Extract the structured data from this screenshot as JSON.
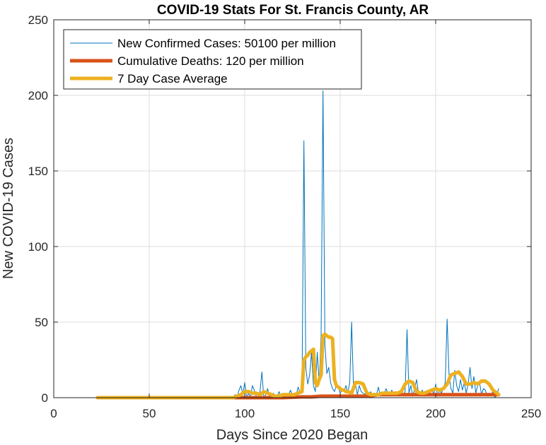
{
  "chart_data": {
    "type": "line",
    "title": "COVID-19 Stats For St. Francis County, AR",
    "xlabel": "Days Since 2020 Began",
    "ylabel": "New COVID-19 Cases",
    "xlim": [
      0,
      250
    ],
    "ylim": [
      0,
      250
    ],
    "xticks": [
      "0",
      "50",
      "100",
      "150",
      "200",
      "250"
    ],
    "yticks": [
      "0",
      "50",
      "100",
      "150",
      "200",
      "250"
    ],
    "grid": true,
    "legend_position": "top-left",
    "series": [
      {
        "name": "New Confirmed Cases: 50100 per million",
        "color": "#0072BD",
        "style": "thin",
        "x": [
          23,
          30,
          40,
          50,
          60,
          70,
          80,
          90,
          92,
          94,
          95,
          96,
          97,
          98,
          99,
          100,
          101,
          102,
          103,
          104,
          105,
          106,
          107,
          108,
          109,
          110,
          111,
          112,
          113,
          114,
          115,
          116,
          117,
          118,
          119,
          120,
          121,
          122,
          123,
          124,
          125,
          126,
          127,
          128,
          129,
          130,
          131,
          132,
          133,
          134,
          135,
          136,
          137,
          138,
          139,
          140,
          141,
          142,
          143,
          144,
          145,
          146,
          147,
          148,
          149,
          150,
          151,
          152,
          153,
          154,
          155,
          156,
          157,
          158,
          159,
          160,
          161,
          162,
          163,
          164,
          165,
          166,
          167,
          168,
          169,
          170,
          171,
          172,
          173,
          174,
          175,
          176,
          177,
          178,
          179,
          180,
          181,
          182,
          183,
          184,
          185,
          186,
          187,
          188,
          189,
          190,
          191,
          192,
          193,
          194,
          195,
          196,
          197,
          198,
          199,
          200,
          201,
          202,
          203,
          204,
          205,
          206,
          207,
          208,
          209,
          210,
          211,
          212,
          213,
          214,
          215,
          216,
          217,
          218,
          219,
          220,
          221,
          222,
          223,
          224,
          225,
          226,
          227,
          228,
          229,
          230,
          231,
          232,
          233
        ],
        "y": [
          0,
          0,
          0,
          0,
          0,
          0,
          0,
          0,
          1,
          0,
          2,
          0,
          5,
          8,
          2,
          10,
          0,
          3,
          0,
          8,
          5,
          1,
          0,
          4,
          17,
          0,
          2,
          6,
          1,
          0,
          3,
          0,
          1,
          4,
          0,
          1,
          3,
          0,
          2,
          5,
          1,
          0,
          2,
          7,
          3,
          4,
          170,
          20,
          9,
          15,
          30,
          8,
          4,
          30,
          10,
          40,
          203,
          35,
          16,
          20,
          10,
          6,
          4,
          8,
          7,
          3,
          5,
          4,
          8,
          3,
          10,
          50,
          5,
          9,
          2,
          8,
          4,
          3,
          2,
          5,
          1,
          4,
          0,
          3,
          2,
          7,
          1,
          3,
          2,
          6,
          3,
          1,
          5,
          2,
          4,
          2,
          1,
          3,
          2,
          4,
          45,
          3,
          8,
          1,
          6,
          12,
          3,
          2,
          5,
          1,
          4,
          2,
          3,
          6,
          2,
          9,
          1,
          5,
          3,
          6,
          10,
          52,
          15,
          6,
          3,
          18,
          8,
          4,
          12,
          5,
          10,
          3,
          9,
          20,
          6,
          14,
          3,
          8,
          10,
          2,
          6,
          5,
          1,
          3,
          2,
          4,
          0,
          2,
          6
        ]
      },
      {
        "name": "Cumulative Deaths: 120 per million",
        "color": "#D95319",
        "style": "thick",
        "x": [
          23,
          50,
          90,
          100,
          110,
          120,
          130,
          135,
          140,
          145,
          150,
          155,
          160,
          165,
          170,
          175,
          180,
          185,
          190,
          195,
          200,
          205,
          210,
          215,
          220,
          225,
          230,
          233
        ],
        "y": [
          0,
          0,
          0,
          0,
          0,
          0,
          0.5,
          0.5,
          1,
          1,
          1,
          1,
          1,
          1,
          2,
          2,
          2,
          2,
          2,
          2,
          2,
          2,
          2,
          2,
          2,
          2,
          2,
          2
        ]
      },
      {
        "name": "7 Day Case Average",
        "color": "#EDB120",
        "style": "thick",
        "x": [
          23,
          50,
          90,
          94,
          96,
          98,
          100,
          102,
          104,
          106,
          108,
          110,
          112,
          114,
          116,
          118,
          120,
          122,
          124,
          126,
          128,
          130,
          131,
          132,
          133,
          134,
          135,
          136,
          137,
          138,
          139,
          140,
          141,
          142,
          143,
          144,
          145,
          146,
          147,
          148,
          149,
          150,
          151,
          152,
          153,
          154,
          156,
          158,
          160,
          162,
          164,
          166,
          168,
          170,
          172,
          174,
          176,
          178,
          180,
          182,
          184,
          186,
          188,
          190,
          192,
          194,
          196,
          198,
          200,
          202,
          204,
          206,
          208,
          210,
          212,
          214,
          216,
          218,
          220,
          222,
          224,
          226,
          228,
          230,
          232,
          233
        ],
        "y": [
          0,
          0,
          0,
          0,
          1,
          2,
          4,
          4,
          3,
          3,
          2,
          4,
          3,
          2,
          1,
          1,
          2,
          2,
          2,
          2,
          3,
          4,
          25,
          27,
          28,
          30,
          31,
          32,
          10,
          8,
          12,
          15,
          41,
          42,
          41,
          40,
          40,
          39,
          12,
          8,
          7,
          6,
          5,
          5,
          4,
          4,
          3,
          10,
          10,
          9,
          3,
          2,
          2,
          2,
          3,
          3,
          3,
          3,
          3,
          4,
          9,
          11,
          10,
          4,
          3,
          3,
          4,
          5,
          6,
          5,
          6,
          9,
          15,
          16,
          17,
          14,
          9,
          9,
          10,
          9,
          11,
          11,
          9,
          5,
          3,
          2
        ]
      }
    ]
  }
}
